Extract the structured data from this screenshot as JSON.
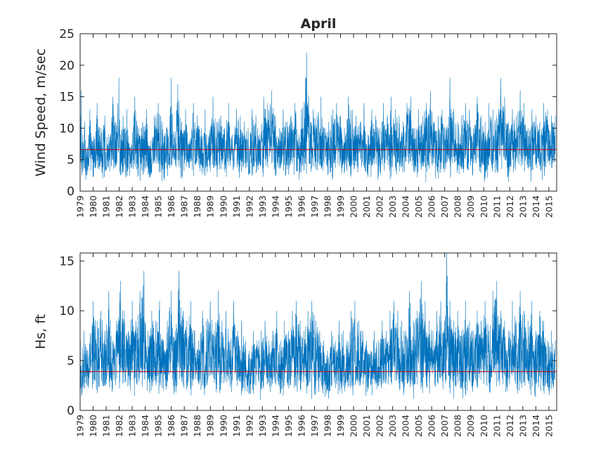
{
  "chart_data": [
    {
      "type": "line",
      "title": "April",
      "xlabel": "",
      "ylabel": "Wind Speed, m/sec",
      "ylim": [
        0,
        25
      ],
      "yticks": [
        0,
        5,
        10,
        15,
        20,
        25
      ],
      "xlim": [
        1979,
        2015.6
      ],
      "x_tick_labels": [
        "1979",
        "1980",
        "1981",
        "1982",
        "1983",
        "1984",
        "1985",
        "1986",
        "1987",
        "1988",
        "1989",
        "1990",
        "1991",
        "1992",
        "1993",
        "1994",
        "1995",
        "1996",
        "1997",
        "1998",
        "1999",
        "2000",
        "2001",
        "2002",
        "2003",
        "2004",
        "2005",
        "2006",
        "2007",
        "2008",
        "2009",
        "2010",
        "2011",
        "2012",
        "2013",
        "2014",
        "2015"
      ],
      "mean_line": 6.6,
      "series_color": "#0072bd",
      "mean_color": "#d00000",
      "series": [
        {
          "x": [
            1979.02,
            1979.08,
            1979.2,
            1979.35,
            1979.55,
            1979.75,
            1980.0,
            1980.3,
            1980.6,
            1980.9,
            1981.2,
            1981.5,
            1981.75,
            1981.88,
            1981.98,
            1982.1,
            1982.3,
            1982.6,
            1982.9,
            1983.2,
            1983.5,
            1983.8,
            1984.1,
            1984.4,
            1984.7,
            1985.0,
            1985.3,
            1985.6,
            1985.9,
            1986.0,
            1986.2,
            1986.5,
            1986.8,
            1987.1,
            1987.4,
            1987.7,
            1988.0,
            1988.3,
            1988.6,
            1988.9,
            1989.2,
            1989.5,
            1989.8,
            1990.1,
            1990.4,
            1990.7,
            1991.0,
            1991.3,
            1991.6,
            1991.9,
            1992.2,
            1992.5,
            1992.8,
            1993.1,
            1993.4,
            1993.7,
            1994.0,
            1994.3,
            1994.6,
            1994.9,
            1995.2,
            1995.5,
            1995.8,
            1996.0,
            1996.4,
            1996.7,
            1996.9,
            1997.2,
            1997.5,
            1997.8,
            1998.1,
            1998.4,
            1998.7,
            1999.0,
            1999.3,
            1999.6,
            1999.9,
            2000.2,
            2000.5,
            2000.8,
            2001.1,
            2001.4,
            2001.7,
            2002.0,
            2002.3,
            2002.6,
            2002.9,
            2003.2,
            2003.5,
            2003.8,
            2004.1,
            2004.4,
            2004.7,
            2005.0,
            2005.3,
            2005.6,
            2005.9,
            2006.2,
            2006.5,
            2006.8,
            2007.1,
            2007.4,
            2007.7,
            2008.0,
            2008.3,
            2008.6,
            2008.9,
            2009.2,
            2009.5,
            2009.8,
            2010.1,
            2010.4,
            2010.7,
            2011.0,
            2011.3,
            2011.6,
            2011.9,
            2012.2,
            2012.5,
            2012.8,
            2013.1,
            2013.4,
            2013.7,
            2014.0,
            2014.3,
            2014.6,
            2014.9,
            2015.2,
            2015.5
          ],
          "y": [
            12,
            16,
            9,
            11,
            7,
            13,
            8,
            14,
            10,
            12,
            9,
            15,
            11,
            14,
            18,
            9,
            12,
            13,
            7,
            15,
            10,
            11,
            13,
            8,
            12,
            14,
            11,
            10,
            12,
            18,
            9,
            17,
            11,
            13,
            8,
            14,
            12,
            10,
            13,
            9,
            15,
            11,
            12,
            10,
            14,
            9,
            13,
            12,
            11,
            10,
            13,
            12,
            9,
            15,
            14,
            16,
            12,
            10,
            13,
            11,
            12,
            14,
            9,
            13,
            22,
            11,
            13,
            12,
            15,
            10,
            11,
            13,
            14,
            12,
            10,
            15,
            13,
            12,
            11,
            14,
            9,
            13,
            12,
            10,
            14,
            12,
            15,
            13,
            12,
            11,
            14,
            15,
            10,
            13,
            12,
            14,
            16,
            11,
            12,
            13,
            10,
            18,
            13,
            11,
            12,
            14,
            13,
            10,
            15,
            12,
            11,
            14,
            13,
            12,
            18,
            15,
            11,
            13,
            12,
            16,
            14,
            10,
            13,
            12,
            11,
            14,
            13,
            12,
            12
          ],
          "y_low": [
            2,
            1,
            3,
            1,
            2,
            3,
            1,
            2,
            2,
            1,
            3,
            2,
            1,
            2,
            3,
            1,
            2,
            1,
            2,
            3,
            1,
            2,
            2,
            1,
            3,
            2,
            1,
            2,
            2,
            1,
            3,
            2,
            1,
            2,
            2,
            1,
            3,
            2,
            1,
            2,
            2,
            1,
            3,
            2,
            1,
            2,
            2,
            1,
            3,
            2,
            1,
            2,
            2,
            1,
            3,
            2,
            1,
            2,
            2,
            1,
            3,
            2,
            1,
            2,
            2,
            1,
            3,
            2,
            1,
            2,
            2,
            1,
            3,
            2,
            1,
            2,
            2,
            1,
            3,
            2,
            1,
            2,
            2,
            1,
            3,
            2,
            1,
            2,
            2,
            1,
            3,
            2,
            1,
            2,
            2,
            1,
            3,
            2,
            1,
            2,
            2,
            1,
            3,
            2,
            1,
            2,
            2,
            1,
            3,
            2,
            1,
            2,
            2,
            1,
            3,
            2,
            1,
            2,
            2,
            1,
            3,
            2,
            1,
            2,
            2,
            1,
            3,
            2,
            2
          ]
        }
      ]
    },
    {
      "type": "line",
      "title": "",
      "xlabel": "",
      "ylabel": "Hs, ft",
      "ylim": [
        0,
        15.8
      ],
      "yticks": [
        0,
        5,
        10,
        15
      ],
      "xlim": [
        1979,
        2015.6
      ],
      "x_tick_labels": [
        "1979",
        "1980",
        "1981",
        "1982",
        "1983",
        "1984",
        "1985",
        "1986",
        "1987",
        "1988",
        "1989",
        "1990",
        "1991",
        "1992",
        "1993",
        "1994",
        "1995",
        "1996",
        "1997",
        "1998",
        "1999",
        "2000",
        "2001",
        "2002",
        "2003",
        "2004",
        "2005",
        "2006",
        "2007",
        "2008",
        "2009",
        "2010",
        "2011",
        "2012",
        "2013",
        "2014",
        "2015"
      ],
      "mean_line": 3.9,
      "series_color": "#0072bd",
      "mean_color": "#d00000",
      "series": [
        {
          "x": [
            1979.02,
            1979.3,
            1979.6,
            1980.0,
            1980.3,
            1980.6,
            1980.9,
            1981.2,
            1981.5,
            1981.8,
            1982.1,
            1982.4,
            1982.7,
            1983.0,
            1983.3,
            1983.6,
            1983.9,
            1984.2,
            1984.5,
            1984.8,
            1985.1,
            1985.4,
            1985.7,
            1986.0,
            1986.3,
            1986.6,
            1986.9,
            1987.2,
            1987.5,
            1987.8,
            1988.1,
            1988.4,
            1988.7,
            1989.0,
            1989.3,
            1989.6,
            1989.9,
            1990.2,
            1990.5,
            1990.8,
            1991.1,
            1991.4,
            1991.7,
            1992.0,
            1992.3,
            1992.6,
            1992.9,
            1993.2,
            1993.5,
            1993.8,
            1994.1,
            1994.4,
            1994.7,
            1995.0,
            1995.3,
            1995.6,
            1995.9,
            1996.2,
            1996.5,
            1996.8,
            1997.1,
            1997.4,
            1997.7,
            1998.0,
            1998.3,
            1998.6,
            1998.9,
            1999.2,
            1999.5,
            1999.8,
            2000.1,
            2000.4,
            2000.7,
            2001.0,
            2001.3,
            2001.6,
            2001.9,
            2002.2,
            2002.5,
            2002.8,
            2003.1,
            2003.4,
            2003.7,
            2004.0,
            2004.3,
            2004.6,
            2004.9,
            2005.2,
            2005.5,
            2005.8,
            2006.1,
            2006.4,
            2006.7,
            2007.0,
            2007.15,
            2007.4,
            2007.7,
            2008.0,
            2008.3,
            2008.6,
            2008.9,
            2009.2,
            2009.5,
            2009.8,
            2010.1,
            2010.4,
            2010.7,
            2011.0,
            2011.3,
            2011.6,
            2011.9,
            2012.2,
            2012.5,
            2012.8,
            2013.1,
            2013.4,
            2013.7,
            2014.0,
            2014.3,
            2014.6,
            2014.9,
            2015.2,
            2015.5
          ],
          "y": [
            7,
            8,
            6,
            11,
            9,
            10,
            8,
            12,
            7,
            9,
            13,
            10,
            8,
            11,
            9,
            12,
            14,
            8,
            10,
            9,
            11,
            7,
            9,
            12,
            8,
            14,
            10,
            9,
            11,
            8,
            7,
            10,
            9,
            11,
            8,
            12,
            9,
            10,
            7,
            11,
            8,
            9,
            7,
            6,
            8,
            7,
            8,
            9,
            7,
            8,
            10,
            7,
            9,
            8,
            10,
            11,
            9,
            8,
            10,
            11,
            9,
            8,
            7,
            6,
            8,
            7,
            9,
            8,
            7,
            10,
            11,
            9,
            8,
            7,
            6,
            8,
            7,
            9,
            8,
            10,
            11,
            10,
            9,
            8,
            12,
            9,
            10,
            13,
            11,
            9,
            8,
            10,
            11,
            9,
            16,
            11,
            9,
            10,
            8,
            11,
            9,
            8,
            10,
            9,
            11,
            8,
            12,
            13,
            10,
            9,
            8,
            11,
            9,
            12,
            10,
            9,
            11,
            8,
            10,
            9,
            7,
            8,
            7
          ],
          "y_low": [
            1,
            1,
            2,
            1,
            1,
            2,
            1,
            1,
            1,
            2,
            1,
            1,
            2,
            1,
            1,
            1,
            2,
            1,
            1,
            2,
            1,
            1,
            1,
            2,
            1,
            1,
            2,
            1,
            1,
            1,
            2,
            1,
            1,
            2,
            1,
            1,
            1,
            2,
            1,
            1,
            2,
            1,
            1,
            1,
            1,
            1,
            1,
            2,
            1,
            1,
            2,
            1,
            1,
            1,
            2,
            1,
            1,
            2,
            1,
            1,
            1,
            2,
            1,
            1,
            1,
            2,
            1,
            1,
            2,
            1,
            1,
            1,
            2,
            1,
            1,
            1,
            2,
            1,
            1,
            2,
            1,
            1,
            1,
            2,
            1,
            1,
            2,
            1,
            1,
            1,
            2,
            1,
            1,
            2,
            1,
            1,
            1,
            2,
            1,
            1,
            2,
            1,
            1,
            1,
            2,
            1,
            1,
            2,
            1,
            1,
            1,
            2,
            1,
            1,
            2,
            1,
            1,
            1,
            2,
            1,
            1,
            1,
            1
          ]
        }
      ]
    }
  ]
}
